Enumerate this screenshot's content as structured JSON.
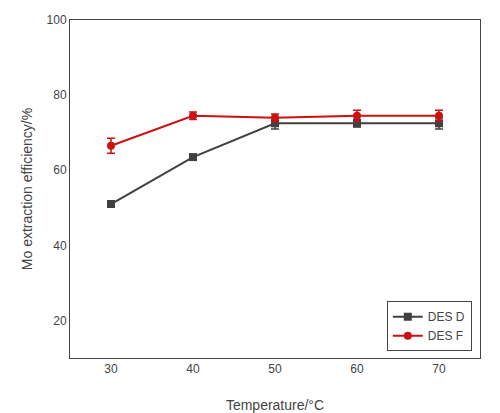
{
  "chart_data": {
    "type": "line",
    "x": [
      30,
      40,
      50,
      60,
      70
    ],
    "series": [
      {
        "name": "DES D",
        "color": "#404040",
        "marker": "square",
        "values": [
          51.0,
          63.5,
          72.5,
          72.5,
          72.5
        ],
        "errors": [
          0.8,
          0.5,
          1.5,
          1.0,
          1.5
        ]
      },
      {
        "name": "DES F",
        "color": "#cc1111",
        "marker": "circle",
        "values": [
          66.5,
          74.5,
          74.0,
          74.5,
          74.5
        ],
        "errors": [
          2.0,
          1.0,
          1.0,
          1.5,
          1.5
        ]
      }
    ],
    "xlabel": "Temperature/°C",
    "ylabel": "Mo extraction efficiency/%",
    "xlim": [
      25,
      75
    ],
    "xticks": [
      30,
      40,
      50,
      60,
      70
    ],
    "ylim": [
      10,
      100
    ],
    "yticks": [
      20,
      40,
      60,
      80,
      100
    ],
    "grid": false,
    "legend": "lower right"
  }
}
